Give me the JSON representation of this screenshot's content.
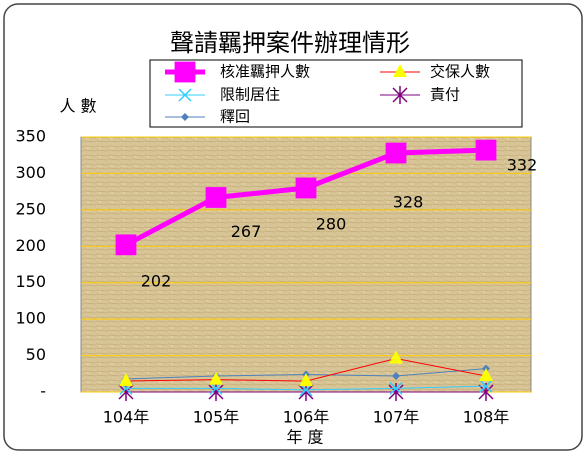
{
  "chart_data": {
    "type": "line",
    "title": "聲請羈押案件辦理情形",
    "y_label": "人 數",
    "x_label": "年 度",
    "categories": [
      "104年",
      "105年",
      "106年",
      "107年",
      "108年"
    ],
    "ylim": [
      0,
      350
    ],
    "yticks": [
      {
        "value": 0,
        "label": "-"
      },
      50,
      100,
      150,
      200,
      250,
      300,
      350
    ],
    "grid": true,
    "series": [
      {
        "name": "核准羈押人數",
        "color": "#ff00ff",
        "marker": "square",
        "values": [
          202,
          267,
          280,
          328,
          332
        ],
        "value_labels": [
          "202",
          "267",
          "280",
          "328",
          "332"
        ]
      },
      {
        "name": "交保人數",
        "color": "#ff0000",
        "marker": "triangle",
        "marker_color": "#ffff00",
        "values": [
          15,
          17,
          15,
          46,
          22
        ]
      },
      {
        "name": "限制居住",
        "color": "#33ccff",
        "marker": "x",
        "values": [
          5,
          5,
          3,
          5,
          8
        ]
      },
      {
        "name": "責付",
        "color": "#800080",
        "marker": "asterisk",
        "values": [
          0,
          0,
          0,
          0,
          0
        ]
      },
      {
        "name": "釋回",
        "color": "#4f81bd",
        "marker": "diamond",
        "values": [
          18,
          22,
          24,
          22,
          32
        ]
      }
    ]
  }
}
